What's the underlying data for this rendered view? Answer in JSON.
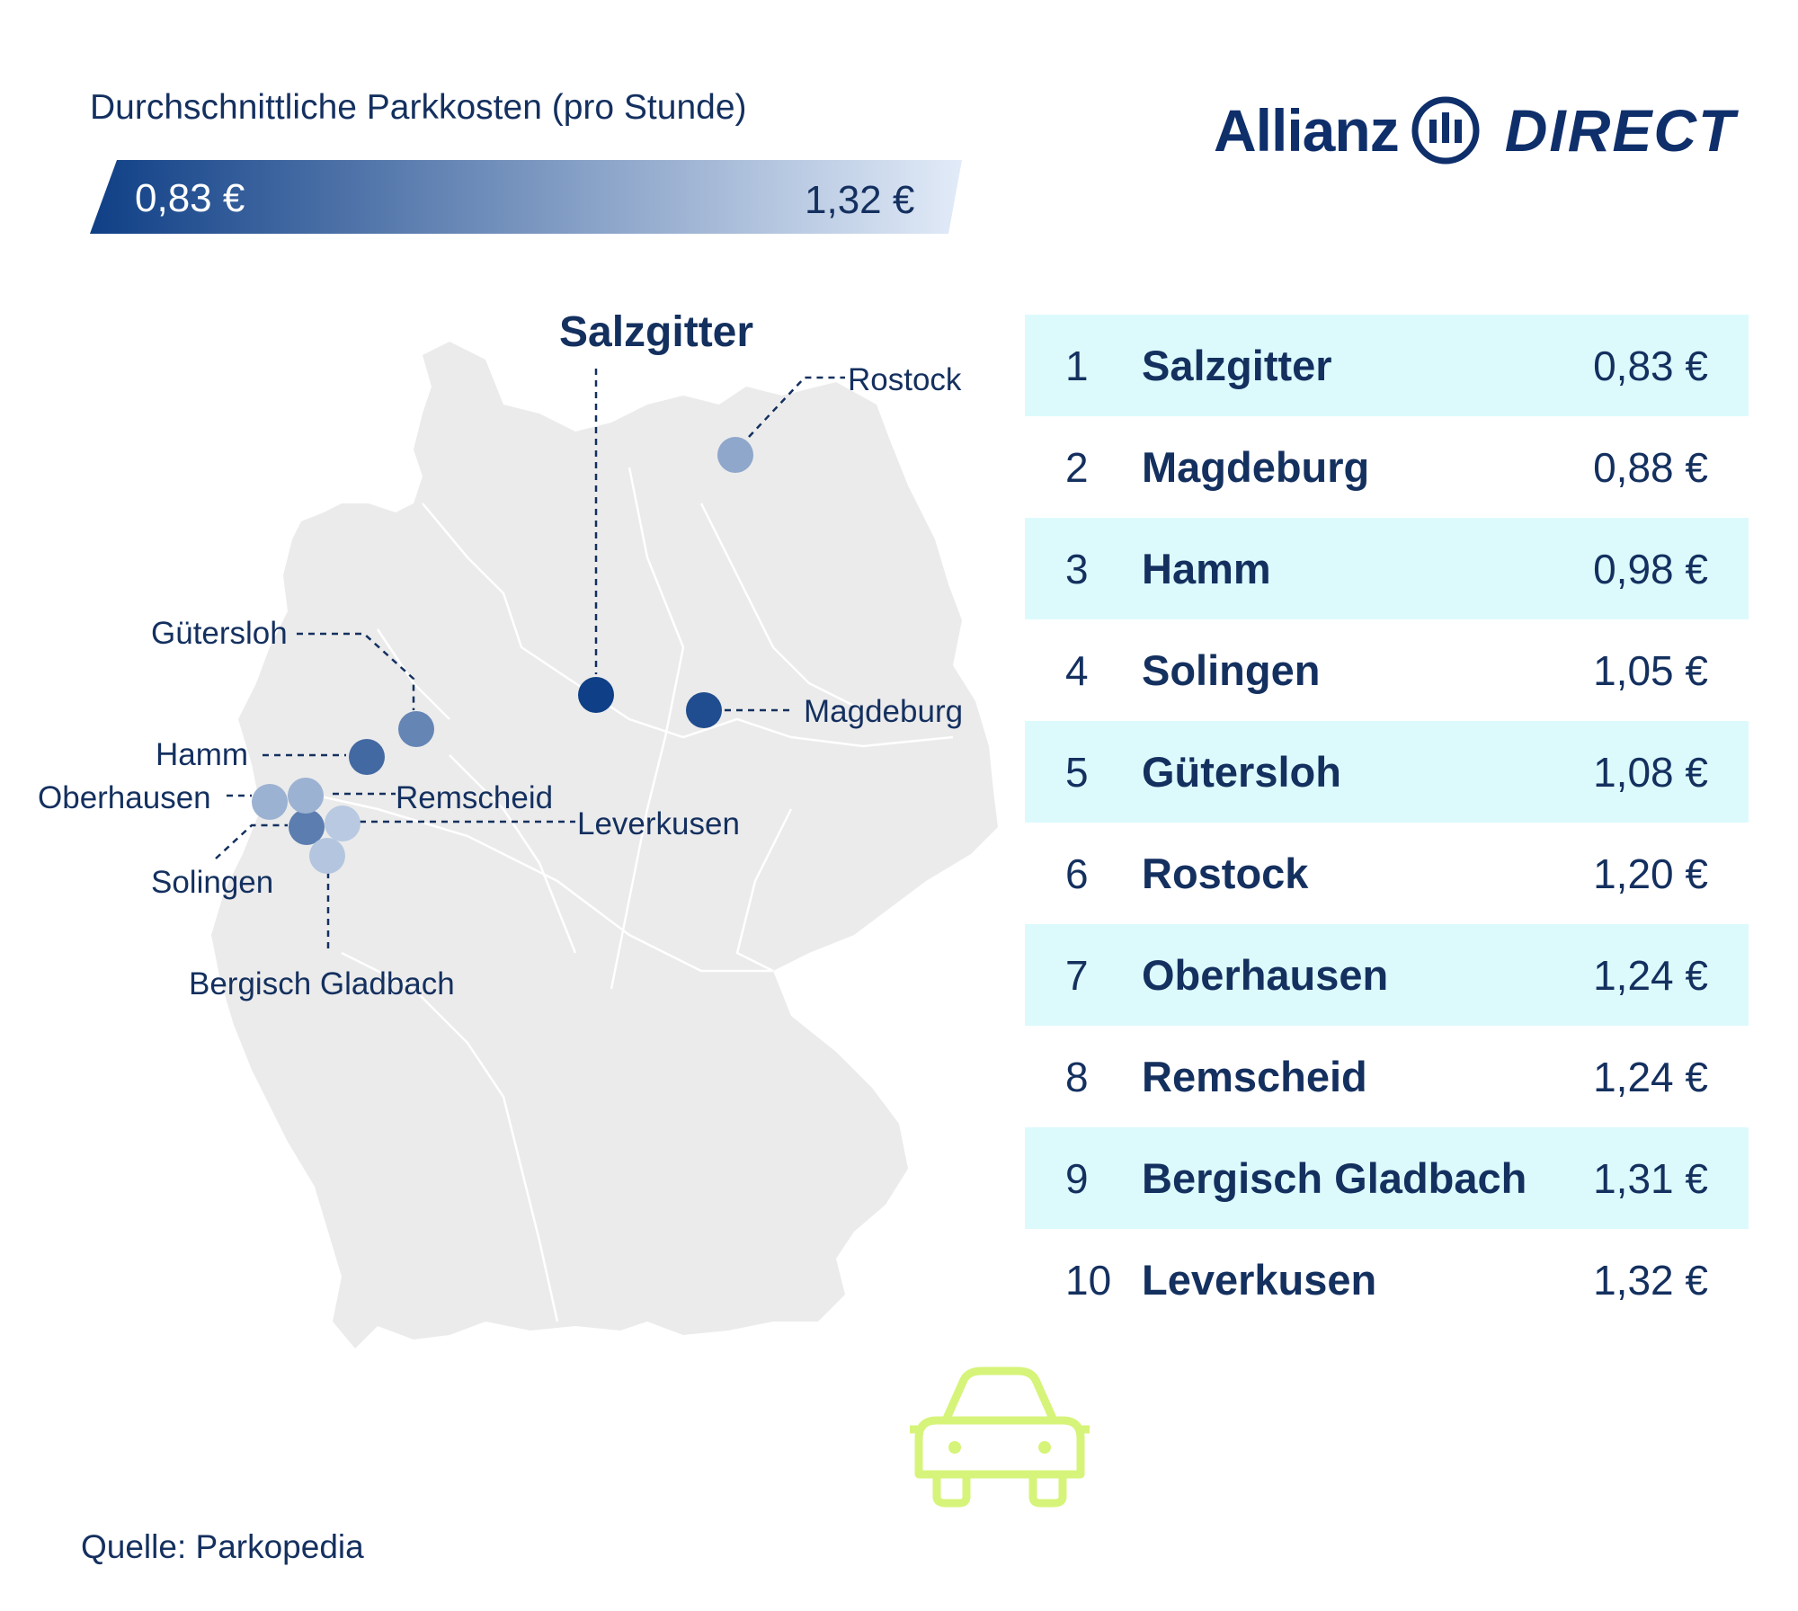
{
  "legend": {
    "title": "Durchschnittliche Parkkosten (pro Stunde)",
    "min_label": "0,83 €",
    "max_label": "1,32 €",
    "color_low": "#0f3f86",
    "color_high": "#e2ebf8"
  },
  "logo": {
    "brand": "Allianz",
    "product": "DIRECT",
    "color": "#0f2f6b"
  },
  "map": {
    "land_color": "#ebebeb",
    "highlight_label": "Salzgitter",
    "cities": [
      {
        "name": "Salzgitter",
        "value": 0.83
      },
      {
        "name": "Magdeburg",
        "value": 0.88
      },
      {
        "name": "Hamm",
        "value": 0.98
      },
      {
        "name": "Solingen",
        "value": 1.05
      },
      {
        "name": "Gütersloh",
        "value": 1.08
      },
      {
        "name": "Rostock",
        "value": 1.2
      },
      {
        "name": "Oberhausen",
        "value": 1.24
      },
      {
        "name": "Remscheid",
        "value": 1.24
      },
      {
        "name": "Bergisch Gladbach",
        "value": 1.31
      },
      {
        "name": "Leverkusen",
        "value": 1.32
      }
    ]
  },
  "ranking": [
    {
      "rank": "1",
      "city": "Salzgitter",
      "price": "0,83 €"
    },
    {
      "rank": "2",
      "city": "Magdeburg",
      "price": "0,88 €"
    },
    {
      "rank": "3",
      "city": "Hamm",
      "price": "0,98 €"
    },
    {
      "rank": "4",
      "city": "Solingen",
      "price": "1,05 €"
    },
    {
      "rank": "5",
      "city": "Gütersloh",
      "price": "1,08 €"
    },
    {
      "rank": "6",
      "city": "Rostock",
      "price": "1,20 €"
    },
    {
      "rank": "7",
      "city": "Oberhausen",
      "price": "1,24 €"
    },
    {
      "rank": "8",
      "city": "Remscheid",
      "price": "1,24 €"
    },
    {
      "rank": "9",
      "city": "Bergisch Gladbach",
      "price": "1,31 €"
    },
    {
      "rank": "10",
      "city": "Leverkusen",
      "price": "1,32 €"
    }
  ],
  "row_shade_color": "#dcfafc",
  "car_icon_color": "#d6f47a",
  "source": "Quelle: Parkopedia"
}
